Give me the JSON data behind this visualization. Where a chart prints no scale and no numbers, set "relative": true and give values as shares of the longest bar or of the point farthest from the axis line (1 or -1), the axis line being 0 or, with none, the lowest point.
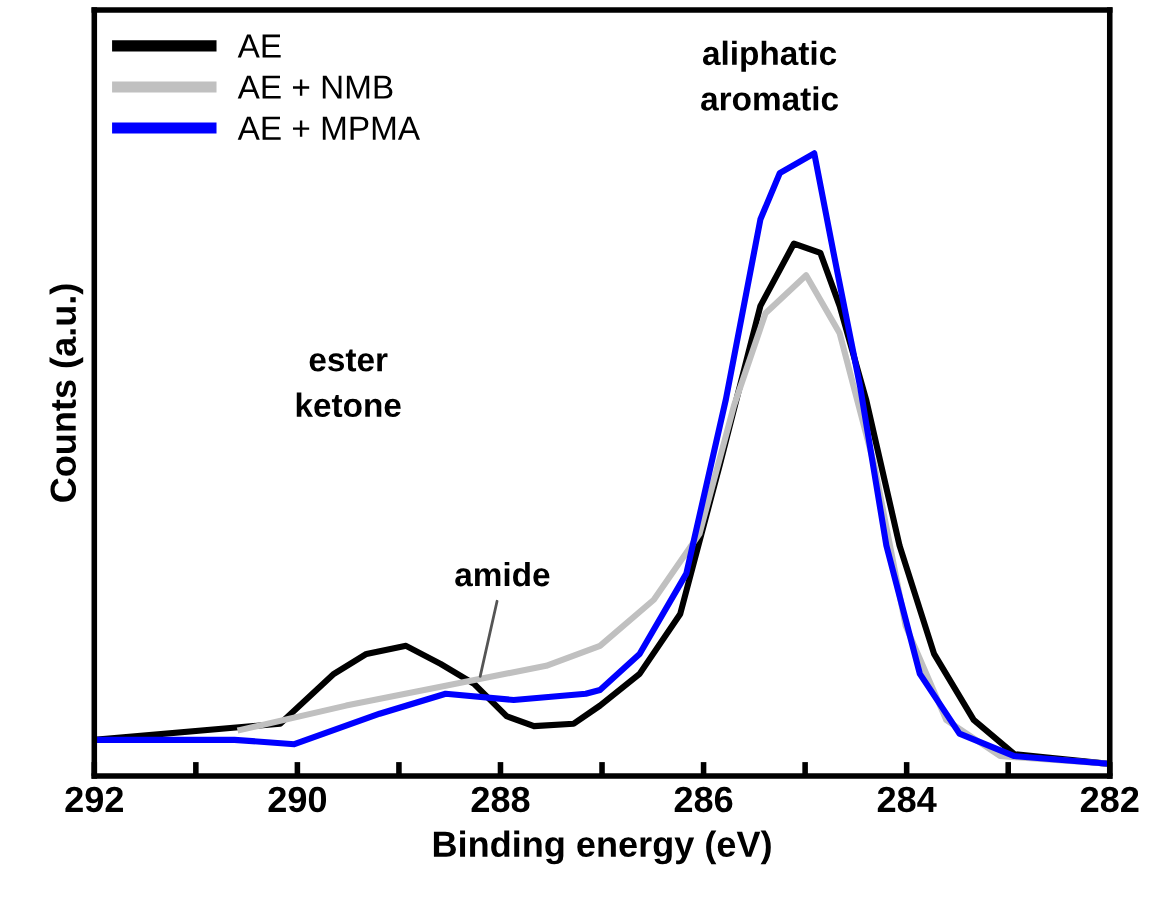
{
  "chart_data": {
    "type": "line",
    "relative": true,
    "xlabel": "Binding energy (eV)",
    "ylabel": "Counts (a.u.)",
    "xlim": [
      292,
      282
    ],
    "xticks": [
      292,
      {
        "value": 291,
        "label": null
      },
      290,
      {
        "value": 289,
        "label": null
      },
      288,
      {
        "value": 287,
        "label": null
      },
      286,
      {
        "value": 285,
        "label": null
      },
      284,
      {
        "value": 283,
        "label": null
      },
      282
    ],
    "legend": "top left",
    "grid": false,
    "marker": "none",
    "line_style": "solid",
    "series": [
      {
        "name": "AE",
        "color": "#000000",
        "x": [
          292,
          290.17,
          289.64,
          289.32,
          288.93,
          288.59,
          288.26,
          287.94,
          287.67,
          287.28,
          287.02,
          286.63,
          286.23,
          285.84,
          285.44,
          285.11,
          284.85,
          284.66,
          284.4,
          284.07,
          283.73,
          283.34,
          282.94,
          282.04
        ],
        "values": [
          0.058,
          0.084,
          0.164,
          0.196,
          0.209,
          0.18,
          0.148,
          0.096,
          0.08,
          0.084,
          0.113,
          0.164,
          0.26,
          0.5,
          0.755,
          0.855,
          0.84,
          0.755,
          0.605,
          0.37,
          0.196,
          0.09,
          0.035,
          0.02
        ]
      },
      {
        "name": "AE + NMB",
        "color": "#c0c0c0",
        "x": [
          290.56,
          289.52,
          288.54,
          287.55,
          287.02,
          286.49,
          286.04,
          285.7,
          285.39,
          284.99,
          284.66,
          284.32,
          284.01,
          283.61,
          283.08,
          282.04
        ],
        "values": [
          0.074,
          0.113,
          0.145,
          0.177,
          0.209,
          0.283,
          0.389,
          0.595,
          0.743,
          0.804,
          0.711,
          0.5,
          0.241,
          0.09,
          0.032,
          0.02
        ]
      },
      {
        "name": "AE + MPMA",
        "color": "#0000ff",
        "x": [
          292,
          290.62,
          290.03,
          289.19,
          288.54,
          287.87,
          287.16,
          287.02,
          286.63,
          286.17,
          285.78,
          285.44,
          285.25,
          284.91,
          284.72,
          284.46,
          284.2,
          283.87,
          283.48,
          282.94,
          282.04
        ],
        "values": [
          0.058,
          0.058,
          0.051,
          0.1,
          0.132,
          0.122,
          0.132,
          0.138,
          0.196,
          0.325,
          0.605,
          0.894,
          0.968,
          1.0,
          0.84,
          0.627,
          0.37,
          0.164,
          0.068,
          0.032,
          0.02
        ]
      }
    ],
    "annotations": [
      "aliphatic\naromatic",
      "ester\nketone",
      {
        "text": "amide",
        "x": 288.2,
        "y": 0.16
      }
    ]
  }
}
